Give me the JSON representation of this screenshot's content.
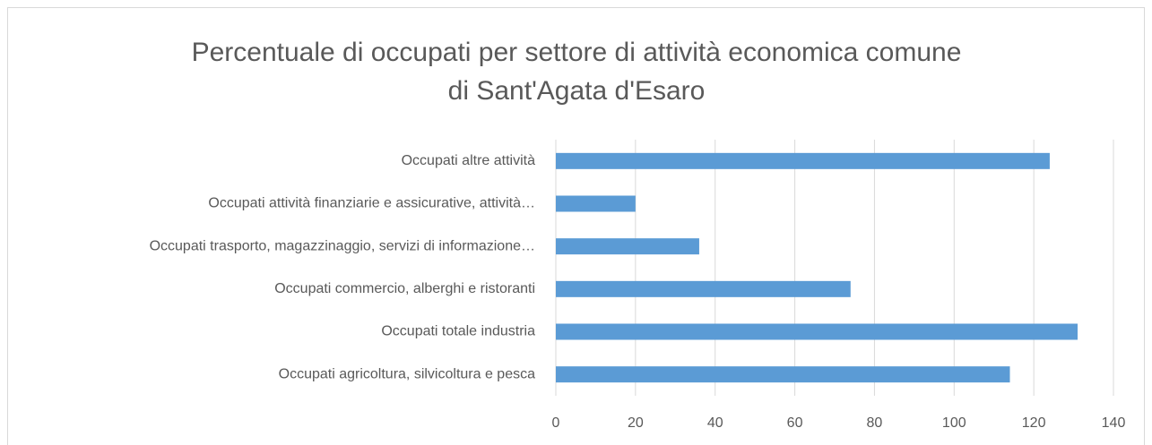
{
  "chart_data": {
    "type": "bar",
    "orientation": "horizontal",
    "title": [
      "Percentuale di occupati per settore di attività economica comune",
      "di Sant'Agata d'Esaro"
    ],
    "categories": [
      "Occupati altre attività",
      "Occupati attività finanziarie e assicurative, attività…",
      "Occupati trasporto, magazzinaggio, servizi di informazione…",
      "Occupati commercio, alberghi e ristoranti",
      "Occupati totale industria",
      "Occupati agricoltura, silvicoltura e pesca"
    ],
    "values": [
      124,
      20,
      36,
      74,
      131,
      114
    ],
    "color": "#5b9bd5",
    "xlim": [
      0,
      140
    ],
    "xticks": [
      0,
      20,
      40,
      60,
      80,
      100,
      120,
      140
    ],
    "grid": true
  }
}
